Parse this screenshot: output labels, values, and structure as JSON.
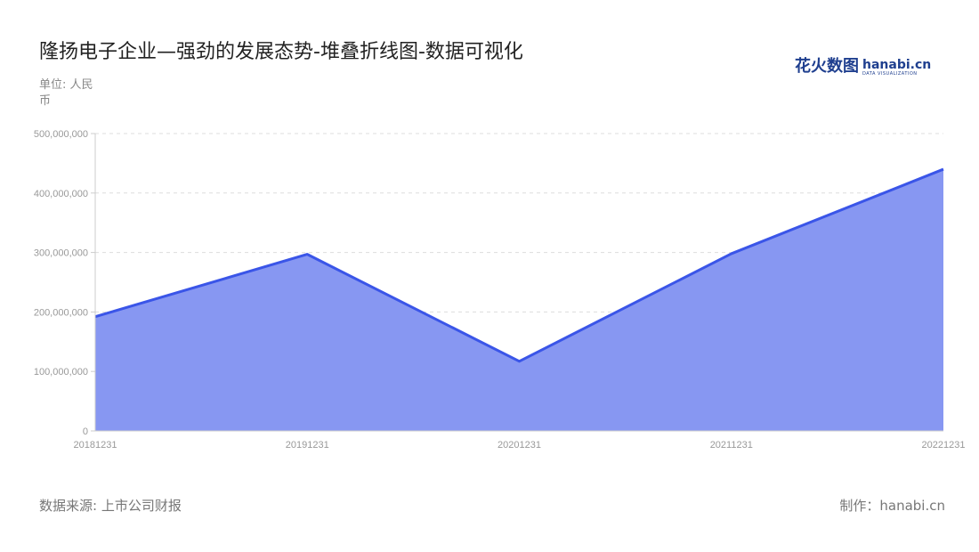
{
  "title": "隆扬电子企业—强劲的发展态势-堆叠折线图-数据可视化",
  "unit_label": "单位: 人民币",
  "logo": {
    "cn": "花火数图",
    "en": "hanabi.cn",
    "sub": "DATA VISUALIZATION"
  },
  "source": "数据来源: 上市公司财报",
  "credit": "制作：hanabi.cn",
  "colors": {
    "line": "#3a55e8",
    "fill": "#8797f2",
    "grid": "#dddddd"
  },
  "chart_data": {
    "type": "area",
    "categories": [
      "20181231",
      "20191231",
      "20201231",
      "20211231",
      "20221231"
    ],
    "values": [
      192000000,
      297000000,
      117000000,
      298000000,
      440000000
    ],
    "ylim": [
      0,
      500000000
    ],
    "yticks": [
      "0",
      "100,000,000",
      "200,000,000",
      "300,000,000",
      "400,000,000",
      "500,000,000"
    ],
    "grid": true,
    "legend": "none"
  }
}
